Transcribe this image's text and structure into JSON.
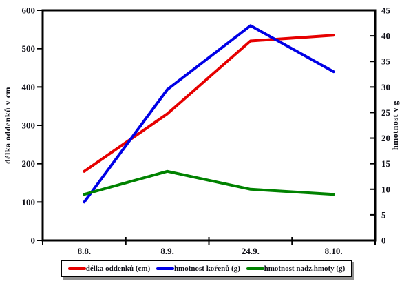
{
  "chart_data": {
    "type": "line",
    "categories": [
      "8.8.",
      "8.9.",
      "24.9.",
      "8.10."
    ],
    "series": [
      {
        "name": "délka oddenků (cm)",
        "axis": "left",
        "color": "#e60000",
        "values": [
          180,
          330,
          520,
          535
        ]
      },
      {
        "name": "hmotnost kořenů (g)",
        "axis": "right",
        "color": "#0000e6",
        "values": [
          7.5,
          29.5,
          42,
          33
        ]
      },
      {
        "name": "hmotnost nadz.hmoty (g)",
        "axis": "right",
        "color": "#008200",
        "values": [
          9,
          13.5,
          10,
          9
        ]
      }
    ],
    "left_axis": {
      "label": "délka oddenků v cm",
      "min": 0,
      "max": 600,
      "step": 100
    },
    "right_axis": {
      "label": "hmotnost v g",
      "min": 0,
      "max": 45,
      "step": 5
    },
    "legend_position": "bottom",
    "grid": false,
    "plot_border_color": "#000000",
    "background_color": "#ffffff"
  }
}
